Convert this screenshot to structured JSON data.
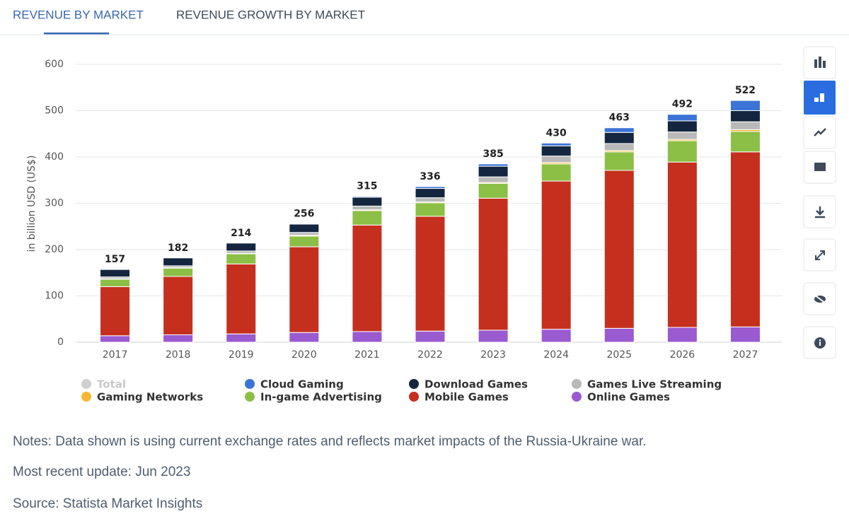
{
  "tabs": [
    "REVENUE BY MARKET",
    "REVENUE GROWTH BY MARKET"
  ],
  "chart_data": {
    "type": "stacked_bar",
    "y_label": "in billion USD (US$)",
    "categories": [
      "2017",
      "2018",
      "2019",
      "2020",
      "2021",
      "2022",
      "2023",
      "2024",
      "2025",
      "2026",
      "2027"
    ],
    "series": [
      {
        "name": "Total",
        "color": "#c8c8c8",
        "total": true,
        "values": [
          157,
          182,
          214,
          256,
          315,
          336,
          385,
          430,
          463,
          492,
          522
        ]
      },
      {
        "name": "Cloud Gaming",
        "color": "#3b74d6",
        "values": [
          0,
          0,
          0,
          1,
          2,
          4,
          5,
          6,
          10,
          14,
          22
        ]
      },
      {
        "name": "Download Games",
        "color": "#14263f",
        "values": [
          16,
          17,
          17,
          18,
          19,
          20,
          23,
          22,
          24,
          24,
          24
        ]
      },
      {
        "name": "Games Live Streaming",
        "color": "#b9b9b9",
        "values": [
          4,
          4,
          5,
          6,
          8,
          9,
          12,
          14,
          15,
          16,
          17
        ]
      },
      {
        "name": "Gaming Networks",
        "color": "#f5b731",
        "values": [
          1,
          1,
          1,
          2,
          2,
          2,
          2,
          3,
          3,
          3,
          4
        ]
      },
      {
        "name": "In-game Advertising",
        "color": "#8cbf45",
        "values": [
          16,
          18,
          22,
          23,
          31,
          29,
          32,
          37,
          40,
          46,
          44
        ]
      },
      {
        "name": "Mobile Games",
        "color": "#c5301e",
        "values": [
          106,
          126,
          151,
          185,
          230,
          248,
          285,
          320,
          341,
          357,
          378
        ]
      },
      {
        "name": "Online Games",
        "color": "#9a5ad0",
        "values": [
          14,
          16,
          18,
          21,
          23,
          24,
          26,
          28,
          30,
          32,
          33
        ]
      }
    ],
    "ylim": [
      0,
      600
    ],
    "yticks": [
      0,
      100,
      200,
      300,
      400,
      500,
      600
    ],
    "grid": true
  },
  "notes": [
    "Notes: Data shown is using current exchange rates and reflects market impacts of the Russia-Ukraine war.",
    "Most recent update: Jun 2023",
    "Source: Statista Market Insights"
  ]
}
